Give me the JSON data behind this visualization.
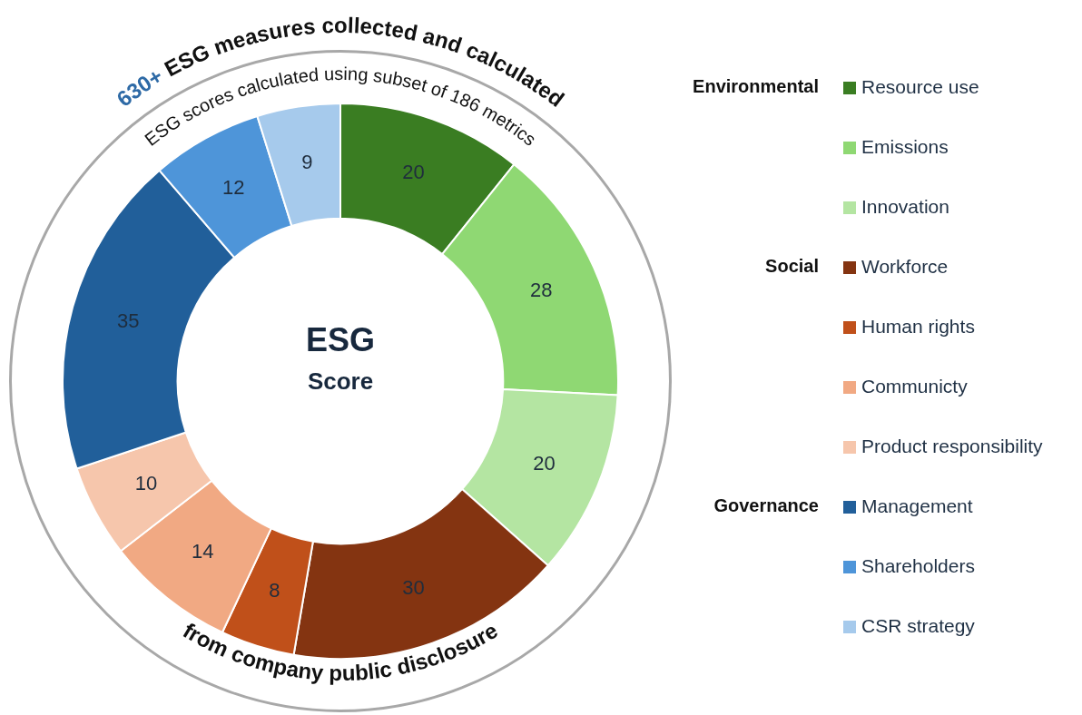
{
  "chart_data": {
    "type": "donut",
    "title": "ESG",
    "subtitle": "Score",
    "categories": [
      "Resource use",
      "Emissions",
      "Innovation",
      "Workforce",
      "Human rights",
      "Communicty",
      "Product responsibility",
      "Management",
      "Shareholders",
      "CSR strategy"
    ],
    "values": [
      20,
      28,
      20,
      30,
      8,
      14,
      10,
      35,
      12,
      9
    ],
    "colors": [
      "#3a7d22",
      "#8fd873",
      "#b4e5a2",
      "#843411",
      "#c0501a",
      "#f1a983",
      "#f6c6ac",
      "#215f9a",
      "#4e95d9",
      "#a6caec"
    ],
    "data_labels": true,
    "legend": "right",
    "annotations": [
      "630+ ESG measures collected and calculated",
      "ESG scores calculated using subset of 186 metrics",
      "from company public disclosure",
      "Environmental",
      "Social",
      "Governance"
    ]
  }
}
